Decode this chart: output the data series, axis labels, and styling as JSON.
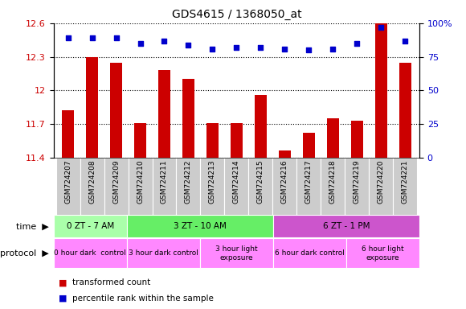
{
  "title": "GDS4615 / 1368050_at",
  "samples": [
    "GSM724207",
    "GSM724208",
    "GSM724209",
    "GSM724210",
    "GSM724211",
    "GSM724212",
    "GSM724213",
    "GSM724214",
    "GSM724215",
    "GSM724216",
    "GSM724217",
    "GSM724218",
    "GSM724219",
    "GSM724220",
    "GSM724221"
  ],
  "red_values": [
    11.82,
    12.3,
    12.25,
    11.71,
    12.18,
    12.1,
    11.71,
    11.71,
    11.96,
    11.46,
    11.62,
    11.75,
    11.73,
    12.6,
    12.25
  ],
  "blue_values": [
    89,
    89,
    89,
    85,
    87,
    84,
    81,
    82,
    82,
    81,
    80,
    81,
    85,
    97,
    87
  ],
  "ylim_left": [
    11.4,
    12.6
  ],
  "ylim_right": [
    0,
    100
  ],
  "yticks_left": [
    11.4,
    11.7,
    12.0,
    12.3,
    12.6
  ],
  "ytick_labels_left": [
    "11.4",
    "11.7",
    "12",
    "12.3",
    "12.6"
  ],
  "yticks_right": [
    0,
    25,
    50,
    75,
    100
  ],
  "ytick_labels_right": [
    "0",
    "25",
    "50",
    "75",
    "100%"
  ],
  "red_color": "#cc0000",
  "blue_color": "#0000cc",
  "time_groups": [
    {
      "label": "0 ZT - 7 AM",
      "start": 0,
      "end": 3,
      "color": "#aaffaa"
    },
    {
      "label": "3 ZT - 10 AM",
      "start": 3,
      "end": 9,
      "color": "#66ee66"
    },
    {
      "label": "6 ZT - 1 PM",
      "start": 9,
      "end": 15,
      "color": "#cc55cc"
    }
  ],
  "protocol_groups": [
    {
      "label": "0 hour dark  control",
      "start": 0,
      "end": 3,
      "color": "#ff88ff"
    },
    {
      "label": "3 hour dark control",
      "start": 3,
      "end": 6,
      "color": "#ff88ff"
    },
    {
      "label": "3 hour light\nexposure",
      "start": 6,
      "end": 9,
      "color": "#ff88ff"
    },
    {
      "label": "6 hour dark control",
      "start": 9,
      "end": 12,
      "color": "#ff88ff"
    },
    {
      "label": "6 hour light\nexposure",
      "start": 12,
      "end": 15,
      "color": "#ff88ff"
    }
  ],
  "legend_red": "transformed count",
  "legend_blue": "percentile rank within the sample",
  "bar_width": 0.5,
  "bar_bottom": 11.4,
  "xlabel_bg": "#cccccc"
}
